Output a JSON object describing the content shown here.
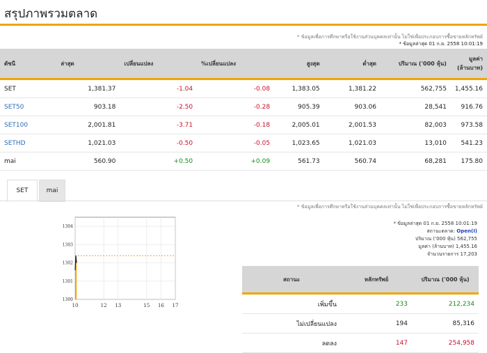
{
  "page": {
    "title": "สรุปภาพรวมตลาด"
  },
  "notice": {
    "disclaimer": "* ข้อมูลเพื่อการศึกษาหรือใช้งานส่วนบุคคลเท่านั้น ไม่ใช่เพื่อประกอบการซื้อขายหลักทรัพย์",
    "updated": "* ข้อมูลล่าสุด 01 ก.ย. 2558 10:01:19"
  },
  "market_table": {
    "headers": [
      "ดัชนี",
      "ล่าสุด",
      "เปลี่ยนแปลง",
      "%เปลี่ยนแปลง",
      "สูงสุด",
      "ต่ำสุด",
      "ปริมาณ ('000 หุ้น)",
      "มูลค่า (ล้านบาท)"
    ],
    "rows": [
      {
        "name": "SET",
        "last": "1,381.37",
        "change": "-1.04",
        "pct": "-0.08",
        "high": "1,383.05",
        "low": "1,381.22",
        "volume": "562,755",
        "value": "1,455.16"
      },
      {
        "name": "SET50",
        "last": "903.18",
        "change": "-2.50",
        "pct": "-0.28",
        "high": "905.39",
        "low": "903.06",
        "volume": "28,541",
        "value": "916.76"
      },
      {
        "name": "SET100",
        "last": "2,001.81",
        "change": "-3.71",
        "pct": "-0.18",
        "high": "2,005.01",
        "low": "2,001.53",
        "volume": "82,003",
        "value": "973.58"
      },
      {
        "name": "SETHD",
        "last": "1,021.03",
        "change": "-0.50",
        "pct": "-0.05",
        "high": "1,023.65",
        "low": "1,021.03",
        "volume": "13,010",
        "value": "541.23"
      },
      {
        "name": "mai",
        "last": "560.90",
        "change": "+0.50",
        "pct": "+0.09",
        "high": "561.73",
        "low": "560.74",
        "volume": "68,281",
        "value": "175.80"
      }
    ]
  },
  "tabs": [
    {
      "label": "SET"
    },
    {
      "label": "mai"
    }
  ],
  "set_panel": {
    "disclaimer": "* ข้อมูลเพื่อการศึกษาหรือใช้งานส่วนบุคคลเท่านั้น ไม่ใช่เพื่อประกอบการซื้อขายหลักทรัพย์",
    "updated": "* ข้อมูลล่าสุด 01 ก.ย. 2558 10:01:19",
    "status_label": "สถานะตลาด:",
    "status_value": "Open(I)",
    "volume_label": "ปริมาณ ('000 หุ้น)",
    "volume_value": "562,755",
    "value_label": "มูลค่า (ล้านบาท)",
    "value_value": "1,455.16",
    "trades_label": "จำนวนรายการ",
    "trades_value": "17,203"
  },
  "chart_data": {
    "type": "line",
    "x_ticks": [
      "10",
      "12",
      "13",
      "15",
      "16",
      "17"
    ],
    "y_ticks": [
      "1300",
      "1301",
      "1302",
      "1303",
      "1304"
    ],
    "ylim": [
      1300,
      1304.5
    ],
    "xlim": [
      10,
      17
    ],
    "reference_line": 1302.4,
    "series": [
      {
        "x": [
          10,
          10.05,
          10.1
        ],
        "y": [
          1301.6,
          1302.4,
          1302.0
        ]
      }
    ],
    "grid": true,
    "colors": {
      "line": "#222222",
      "area": "#f0a500",
      "reference": "#f0a500"
    }
  },
  "stats_table": {
    "headers": [
      "สถานะ",
      "หลักทรัพย์",
      "ปริมาณ ('000 หุ้น)"
    ],
    "rows": [
      {
        "status": "เพิ่มขึ้น",
        "count": "233",
        "volume": "212,234",
        "tone": "pos"
      },
      {
        "status": "ไม่เปลี่ยนแปลง",
        "count": "194",
        "volume": "85,316",
        "tone": "none"
      },
      {
        "status": "ลดลง",
        "count": "147",
        "volume": "254,958",
        "tone": "neg"
      }
    ]
  }
}
